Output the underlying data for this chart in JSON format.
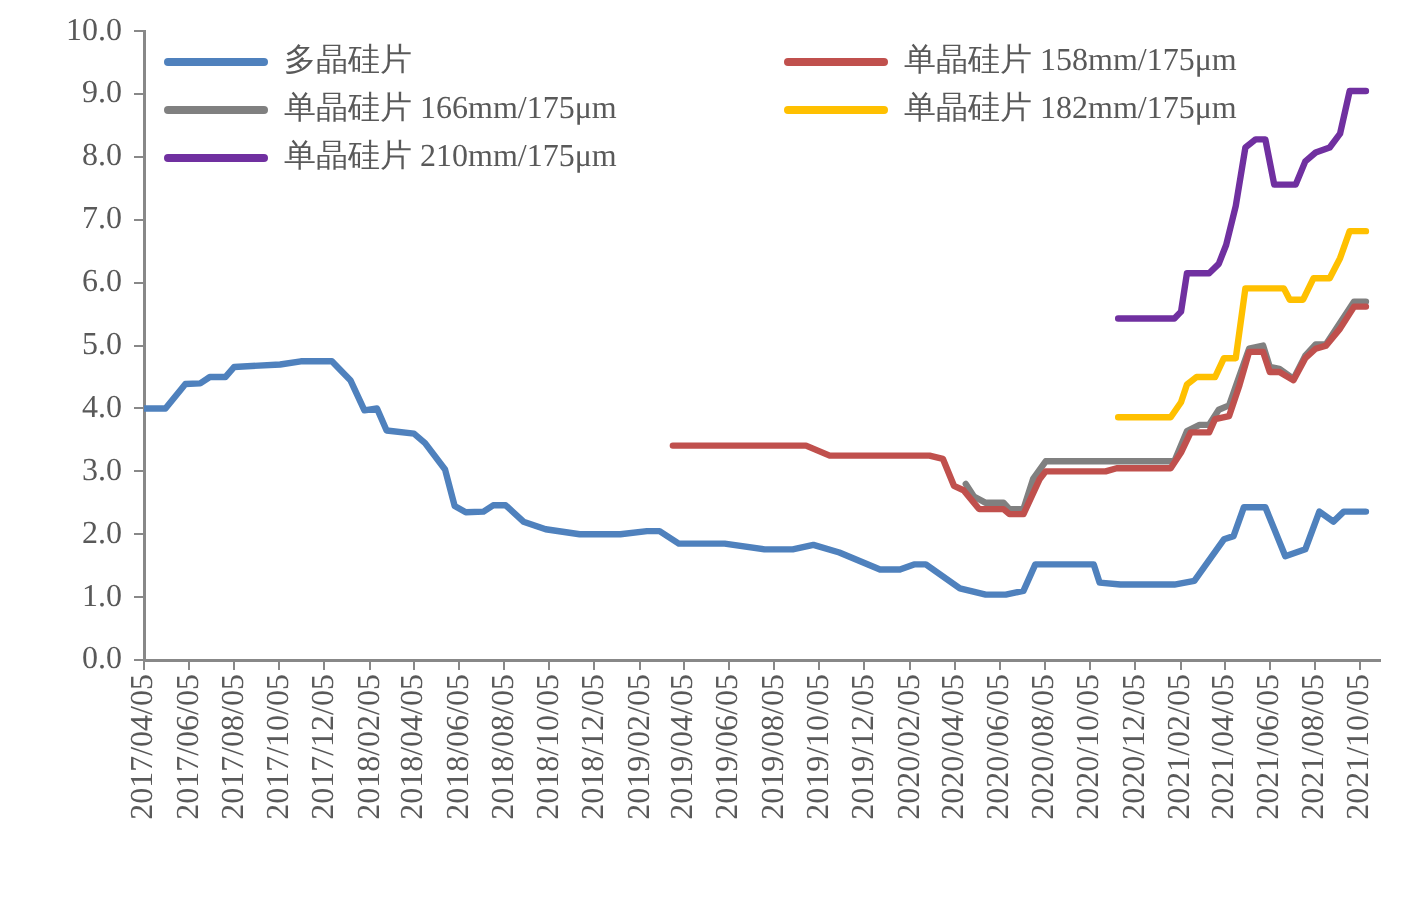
{
  "chart_data": {
    "type": "line",
    "legend": "top",
    "grid": false,
    "ylim": [
      0,
      10
    ],
    "yticks": [
      {
        "value": 0,
        "label": "0.0"
      },
      {
        "value": 1,
        "label": "1.0"
      },
      {
        "value": 2,
        "label": "2.0"
      },
      {
        "value": 3,
        "label": "3.0"
      },
      {
        "value": 4,
        "label": "4.0"
      },
      {
        "value": 5,
        "label": "5.0"
      },
      {
        "value": 6,
        "label": "6.0"
      },
      {
        "value": 7,
        "label": "7.0"
      },
      {
        "value": 8,
        "label": "8.0"
      },
      {
        "value": 9,
        "label": "9.0"
      },
      {
        "value": 10,
        "label": "10.0"
      }
    ],
    "xlim": [
      "2017-04-05",
      "2021-11-01"
    ],
    "xticks": [
      {
        "value": "2017-04-05",
        "label": "2017/04/05"
      },
      {
        "value": "2017-06-05",
        "label": "2017/06/05"
      },
      {
        "value": "2017-08-05",
        "label": "2017/08/05"
      },
      {
        "value": "2017-10-05",
        "label": "2017/10/05"
      },
      {
        "value": "2017-12-05",
        "label": "2017/12/05"
      },
      {
        "value": "2018-02-05",
        "label": "2018/02/05"
      },
      {
        "value": "2018-04-05",
        "label": "2018/04/05"
      },
      {
        "value": "2018-06-05",
        "label": "2018/06/05"
      },
      {
        "value": "2018-08-05",
        "label": "2018/08/05"
      },
      {
        "value": "2018-10-05",
        "label": "2018/10/05"
      },
      {
        "value": "2018-12-05",
        "label": "2018/12/05"
      },
      {
        "value": "2019-02-05",
        "label": "2019/02/05"
      },
      {
        "value": "2019-04-05",
        "label": "2019/04/05"
      },
      {
        "value": "2019-06-05",
        "label": "2019/06/05"
      },
      {
        "value": "2019-08-05",
        "label": "2019/08/05"
      },
      {
        "value": "2019-10-05",
        "label": "2019/10/05"
      },
      {
        "value": "2019-12-05",
        "label": "2019/12/05"
      },
      {
        "value": "2020-02-05",
        "label": "2020/02/05"
      },
      {
        "value": "2020-04-05",
        "label": "2020/04/05"
      },
      {
        "value": "2020-06-05",
        "label": "2020/06/05"
      },
      {
        "value": "2020-08-05",
        "label": "2020/08/05"
      },
      {
        "value": "2020-10-05",
        "label": "2020/10/05"
      },
      {
        "value": "2020-12-05",
        "label": "2020/12/05"
      },
      {
        "value": "2021-02-05",
        "label": "2021/02/05"
      },
      {
        "value": "2021-04-05",
        "label": "2021/04/05"
      },
      {
        "value": "2021-06-05",
        "label": "2021/06/05"
      },
      {
        "value": "2021-08-05",
        "label": "2021/08/05"
      },
      {
        "value": "2021-10-05",
        "label": "2021/10/05"
      }
    ],
    "series": [
      {
        "name": "多晶硅片",
        "color": "#4f81bd",
        "x": [
          "2017-04-05",
          "2017-05-04",
          "2017-05-31",
          "2017-06-20",
          "2017-07-03",
          "2017-07-24",
          "2017-08-05",
          "2017-10-06",
          "2017-11-03",
          "2017-12-15",
          "2018-01-09",
          "2018-01-28",
          "2018-02-14",
          "2018-02-27",
          "2018-04-05",
          "2018-04-20",
          "2018-05-17",
          "2018-05-30",
          "2018-06-14",
          "2018-07-08",
          "2018-07-21",
          "2018-08-07",
          "2018-08-31",
          "2018-09-30",
          "2018-11-15",
          "2019-01-09",
          "2019-02-14",
          "2019-03-03",
          "2019-03-29",
          "2019-05-30",
          "2019-07-23",
          "2019-08-30",
          "2019-09-27",
          "2019-11-01",
          "2019-12-26",
          "2020-01-22",
          "2020-02-10",
          "2020-02-26",
          "2020-04-12",
          "2020-05-17",
          "2020-06-13",
          "2020-07-07",
          "2020-07-23",
          "2020-10-10",
          "2020-10-18",
          "2020-11-15",
          "2021-01-27",
          "2021-02-23",
          "2021-04-04",
          "2021-04-17",
          "2021-05-01",
          "2021-05-30",
          "2021-06-26",
          "2021-07-23",
          "2021-08-11",
          "2021-08-30",
          "2021-09-13",
          "2021-10-13"
        ],
        "values": [
          4.0,
          4.0,
          4.39,
          4.4,
          4.5,
          4.5,
          4.66,
          4.7,
          4.75,
          4.75,
          4.45,
          3.97,
          4.0,
          3.65,
          3.6,
          3.45,
          3.03,
          2.45,
          2.35,
          2.36,
          2.46,
          2.46,
          2.2,
          2.08,
          2.0,
          2.0,
          2.05,
          2.05,
          1.85,
          1.85,
          1.76,
          1.76,
          1.83,
          1.71,
          1.44,
          1.44,
          1.52,
          1.52,
          1.14,
          1.04,
          1.04,
          1.1,
          1.52,
          1.52,
          1.23,
          1.2,
          1.2,
          1.26,
          1.92,
          1.97,
          2.43,
          2.43,
          1.65,
          1.76,
          2.36,
          2.2,
          2.36,
          2.36
        ]
      },
      {
        "name": "单晶硅片 158mm/175μm",
        "color": "#c0504d",
        "x": [
          "2019-03-21",
          "2019-09-17",
          "2019-10-19",
          "2020-03-02",
          "2020-03-20",
          "2020-04-04",
          "2020-04-17",
          "2020-05-08",
          "2020-06-10",
          "2020-06-18",
          "2020-07-07",
          "2020-07-29",
          "2020-08-06",
          "2020-10-26",
          "2020-11-10",
          "2021-01-22",
          "2021-02-05",
          "2021-02-18",
          "2021-03-15",
          "2021-03-23",
          "2021-04-11",
          "2021-04-25",
          "2021-05-08",
          "2021-05-27",
          "2021-06-05",
          "2021-06-18",
          "2021-07-07",
          "2021-07-23",
          "2021-08-06",
          "2021-08-20",
          "2021-09-08",
          "2021-09-27",
          "2021-10-13"
        ],
        "values": [
          3.41,
          3.41,
          3.25,
          3.25,
          3.2,
          2.77,
          2.7,
          2.4,
          2.4,
          2.32,
          2.32,
          2.88,
          3.0,
          3.0,
          3.05,
          3.05,
          3.3,
          3.62,
          3.62,
          3.83,
          3.88,
          4.37,
          4.9,
          4.9,
          4.58,
          4.58,
          4.45,
          4.8,
          4.95,
          5.0,
          5.27,
          5.62,
          5.62
        ]
      },
      {
        "name": "单晶硅片 166mm/175μm",
        "color": "#808080",
        "x": [
          "2020-04-20",
          "2020-05-01",
          "2020-05-17",
          "2020-06-10",
          "2020-06-18",
          "2020-07-07",
          "2020-07-20",
          "2020-08-06",
          "2021-01-27",
          "2021-02-13",
          "2021-03-02",
          "2021-03-15",
          "2021-03-28",
          "2021-04-11",
          "2021-04-25",
          "2021-05-08",
          "2021-05-27",
          "2021-06-05",
          "2021-06-18",
          "2021-07-07",
          "2021-07-23",
          "2021-08-06",
          "2021-08-20",
          "2021-09-03",
          "2021-09-27",
          "2021-10-13"
        ],
        "values": [
          2.8,
          2.6,
          2.5,
          2.5,
          2.4,
          2.4,
          2.88,
          3.16,
          3.16,
          3.64,
          3.74,
          3.74,
          3.98,
          4.05,
          4.52,
          4.95,
          5.0,
          4.66,
          4.63,
          4.47,
          4.84,
          5.02,
          5.02,
          5.27,
          5.7,
          5.7
        ]
      },
      {
        "name": "单晶硅片 182mm/175μm",
        "color": "#ffc000",
        "x": [
          "2020-11-12",
          "2021-01-22",
          "2021-02-05",
          "2021-02-13",
          "2021-02-26",
          "2021-03-23",
          "2021-04-04",
          "2021-04-20",
          "2021-05-03",
          "2021-06-24",
          "2021-07-02",
          "2021-07-20",
          "2021-08-03",
          "2021-08-25",
          "2021-09-08",
          "2021-09-21",
          "2021-10-13"
        ],
        "values": [
          3.86,
          3.86,
          4.1,
          4.38,
          4.5,
          4.5,
          4.8,
          4.8,
          5.91,
          5.91,
          5.73,
          5.73,
          6.07,
          6.07,
          6.39,
          6.82,
          6.82
        ]
      },
      {
        "name": "单晶硅片 210mm/175μm",
        "color": "#7030a0",
        "x": [
          "2020-11-12",
          "2021-01-27",
          "2021-02-05",
          "2021-02-13",
          "2021-03-15",
          "2021-03-28",
          "2021-04-07",
          "2021-04-20",
          "2021-05-03",
          "2021-05-17",
          "2021-05-30",
          "2021-06-11",
          "2021-07-10",
          "2021-07-23",
          "2021-08-06",
          "2021-08-25",
          "2021-09-08",
          "2021-09-21",
          "2021-10-13"
        ],
        "values": [
          5.43,
          5.43,
          5.54,
          6.15,
          6.15,
          6.3,
          6.6,
          7.22,
          8.15,
          8.28,
          8.28,
          7.56,
          7.56,
          7.93,
          8.07,
          8.15,
          8.37,
          9.05,
          9.05
        ]
      }
    ]
  }
}
